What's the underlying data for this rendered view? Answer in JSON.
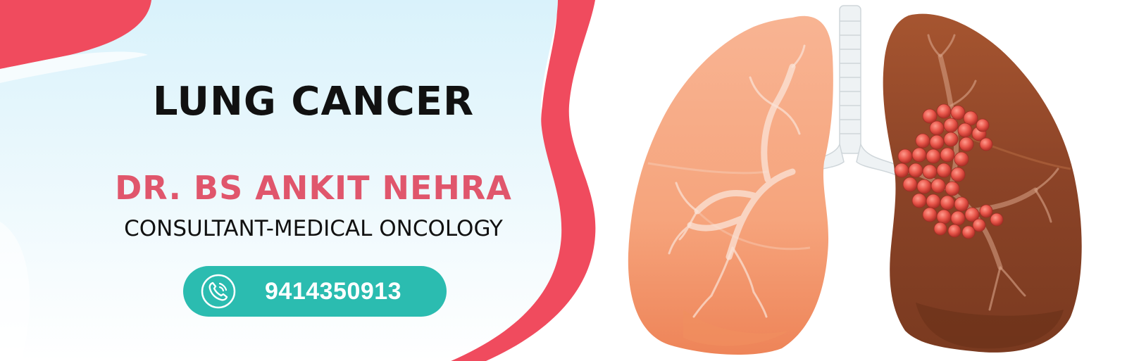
{
  "title": "LUNG CANCER",
  "doctor": {
    "name": "DR. BS ANKIT NEHRA",
    "designation": "CONSULTANT-MEDICAL ONCOLOGY"
  },
  "contact": {
    "icon": "phone-call-icon",
    "phone": "9414350913"
  },
  "illustration": {
    "subject": "lungs-with-tumor-illustration"
  },
  "colors": {
    "accent_pink": "#e0566c",
    "curve_red": "#f04b5e",
    "teal": "#2bbcb0",
    "panel_blue": "#dff4fb",
    "lung_healthy": "#f4a07a",
    "lung_affected": "#8a4226",
    "tumor": "#e8564a"
  }
}
